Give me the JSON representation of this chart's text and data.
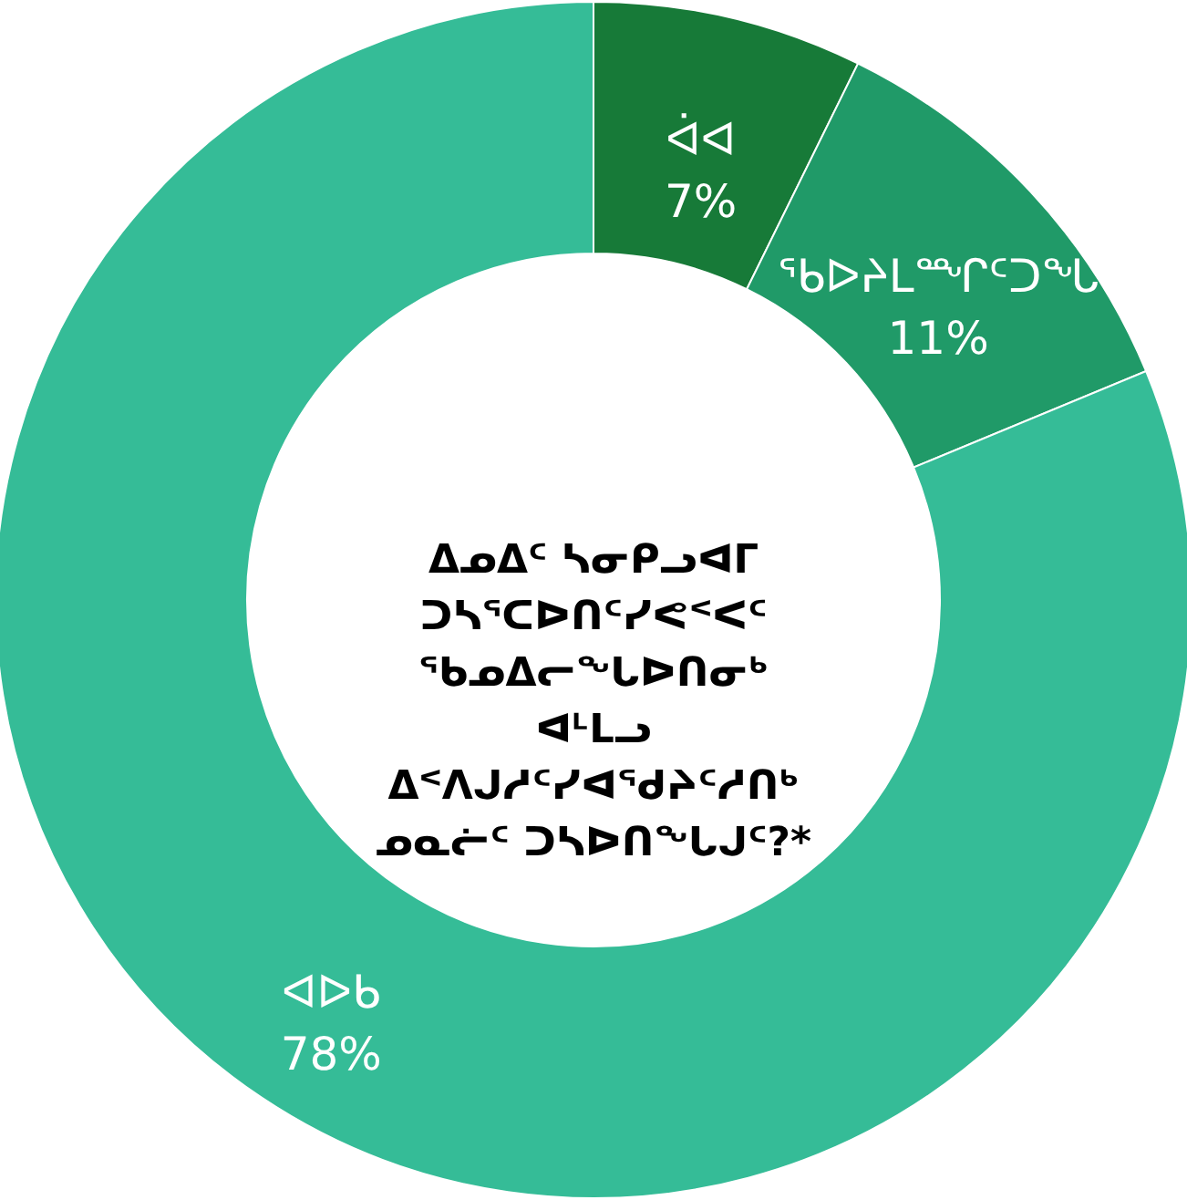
{
  "chart_data": {
    "type": "donut",
    "title": "ᐃᓄᐃᑦ ᓴᓂᑭᓗᐊᒥ\nᑐᓴᕐᑕᐅᑎᑦᓯᕙᑉᐸᑦ\nᖃᓄᐃᓕᖓᐅᑎᓂᒃ\nᐊᒻᒪᓗ\nᐃᑉᐱᒍᓱᑦᓯᐊᕐᑯᔨᑦᓱᑎᒃ\nᓄᓇᓖᑦ ᑐᓴᐅᑎᖓᒍᑦ?*",
    "categories": [
      "ᐋᐊ",
      "ᖃᐅᔨᒪᙱᑦᑐᖓ",
      "ᐊᐅᑲ"
    ],
    "values": [
      7,
      11,
      78
    ],
    "value_labels": [
      "7%",
      "11%",
      "78%"
    ],
    "colors": [
      "#177a38",
      "#209a68",
      "#35bc97"
    ]
  }
}
